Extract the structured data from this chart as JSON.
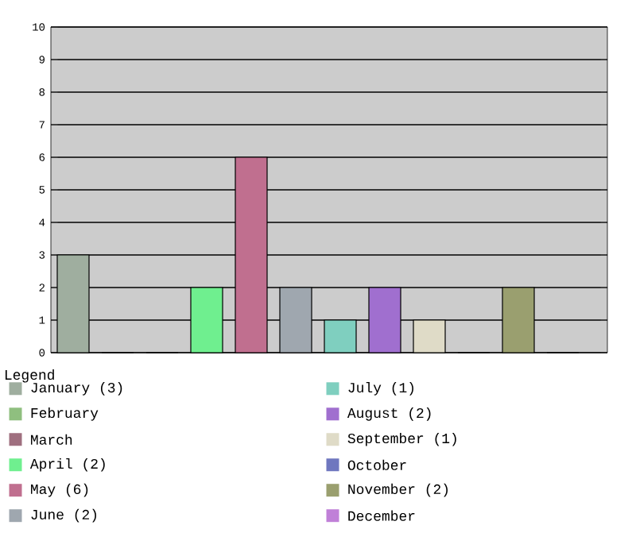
{
  "chart_data": {
    "type": "bar",
    "categories": [
      null,
      null,
      null,
      null,
      null,
      null,
      null,
      null,
      null,
      null,
      null,
      null
    ],
    "series": [
      {
        "name": "January (3)",
        "color": "#9fae9f",
        "values": [
          3,
          null,
          null,
          null,
          null,
          null,
          null,
          null,
          null,
          null,
          null,
          null
        ]
      },
      {
        "name": "February",
        "color": "#8fbf7f",
        "values": [
          null,
          0,
          null,
          null,
          null,
          null,
          null,
          null,
          null,
          null,
          null,
          null
        ]
      },
      {
        "name": "March",
        "color": "#9f6f7f",
        "values": [
          null,
          null,
          0,
          null,
          null,
          null,
          null,
          null,
          null,
          null,
          null,
          null
        ]
      },
      {
        "name": "April (2)",
        "color": "#6fef8f",
        "values": [
          null,
          null,
          null,
          2,
          null,
          null,
          null,
          null,
          null,
          null,
          null,
          null
        ]
      },
      {
        "name": "May (6)",
        "color": "#c06f8f",
        "values": [
          null,
          null,
          null,
          null,
          6,
          null,
          null,
          null,
          null,
          null,
          null,
          null
        ]
      },
      {
        "name": "June (2)",
        "color": "#9fa7af",
        "values": [
          null,
          null,
          null,
          null,
          null,
          2,
          null,
          null,
          null,
          null,
          null,
          null
        ]
      },
      {
        "name": "July (1)",
        "color": "#7fcfbf",
        "values": [
          null,
          null,
          null,
          null,
          null,
          null,
          1,
          null,
          null,
          null,
          null,
          null
        ]
      },
      {
        "name": "August (2)",
        "color": "#a06fcf",
        "values": [
          null,
          null,
          null,
          null,
          null,
          null,
          null,
          2,
          null,
          null,
          null,
          null
        ]
      },
      {
        "name": "September (1)",
        "color": "#dfdbc7",
        "values": [
          null,
          null,
          null,
          null,
          null,
          null,
          null,
          null,
          1,
          null,
          null,
          null
        ]
      },
      {
        "name": "October",
        "color": "#6f77bf",
        "values": [
          null,
          null,
          null,
          null,
          null,
          null,
          null,
          null,
          null,
          0,
          null,
          null
        ]
      },
      {
        "name": "November (2)",
        "color": "#9a9f6f",
        "values": [
          null,
          null,
          null,
          null,
          null,
          null,
          null,
          null,
          null,
          null,
          2,
          null
        ]
      },
      {
        "name": "December",
        "color": "#c080d8",
        "values": [
          null,
          null,
          null,
          null,
          null,
          null,
          null,
          null,
          null,
          null,
          null,
          0
        ]
      }
    ],
    "ylim": [
      0,
      10
    ],
    "yticks": [
      0,
      1,
      2,
      3,
      4,
      5,
      6,
      7,
      8,
      9,
      10
    ],
    "grid": "y",
    "legend": "bottom",
    "legend_title": "Legend"
  }
}
